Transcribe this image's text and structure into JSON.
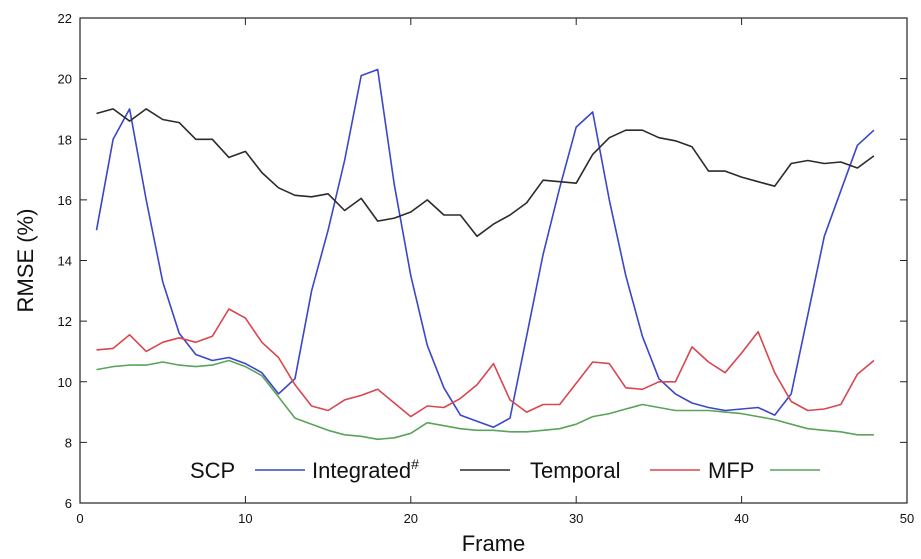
{
  "chart_data": {
    "type": "line",
    "title": "",
    "xlabel": "Frame",
    "ylabel": "RMSE (%)",
    "xlim": [
      0,
      50
    ],
    "ylim": [
      6,
      22
    ],
    "xticks": [
      0,
      10,
      20,
      30,
      40,
      50
    ],
    "yticks": [
      6,
      8,
      10,
      12,
      14,
      16,
      18,
      20,
      22
    ],
    "grid": false,
    "legend_position": "bottom-inside",
    "x": [
      1,
      2,
      3,
      4,
      5,
      6,
      7,
      8,
      9,
      10,
      11,
      12,
      13,
      14,
      15,
      16,
      17,
      18,
      19,
      20,
      21,
      22,
      23,
      24,
      25,
      26,
      27,
      28,
      29,
      30,
      31,
      32,
      33,
      34,
      35,
      36,
      37,
      38,
      39,
      40,
      41,
      42,
      43,
      44,
      45,
      46,
      47,
      48
    ],
    "series": [
      {
        "name": "SCP",
        "color": "#3b46c8",
        "values": [
          15.0,
          18.0,
          19.0,
          16.0,
          13.3,
          11.6,
          10.9,
          10.7,
          10.8,
          10.6,
          10.3,
          9.6,
          10.1,
          13.0,
          15.0,
          17.3,
          20.1,
          20.3,
          16.5,
          13.5,
          11.2,
          9.8,
          8.9,
          8.7,
          8.5,
          8.8,
          11.5,
          14.2,
          16.4,
          18.4,
          18.9,
          16.0,
          13.5,
          11.5,
          10.1,
          9.6,
          9.3,
          9.15,
          9.05,
          9.1,
          9.15,
          8.9,
          9.6,
          12.2,
          14.8,
          16.3,
          17.8,
          18.3
        ]
      },
      {
        "name": "Integrated#",
        "color": "#2b2b2b",
        "values": [
          18.85,
          19.0,
          18.6,
          19.0,
          18.65,
          18.55,
          18.0,
          18.0,
          17.4,
          17.6,
          16.9,
          16.4,
          16.15,
          16.1,
          16.2,
          15.65,
          16.05,
          15.3,
          15.4,
          15.6,
          16.0,
          15.5,
          15.5,
          14.8,
          15.2,
          15.5,
          15.9,
          16.65,
          16.6,
          16.55,
          17.5,
          18.05,
          18.3,
          18.3,
          18.05,
          17.95,
          17.75,
          16.95,
          16.95,
          16.75,
          16.6,
          16.45,
          17.2,
          17.3,
          17.2,
          17.25,
          17.05,
          17.45
        ]
      },
      {
        "name": "Temporal",
        "color": "#d9464f",
        "values": [
          11.05,
          11.1,
          11.55,
          11.0,
          11.3,
          11.45,
          11.3,
          11.5,
          12.4,
          12.1,
          11.3,
          10.8,
          9.9,
          9.2,
          9.05,
          9.4,
          9.55,
          9.75,
          9.3,
          8.85,
          9.2,
          9.15,
          9.45,
          9.9,
          10.6,
          9.4,
          9.0,
          9.25,
          9.25,
          9.95,
          10.65,
          10.6,
          9.8,
          9.75,
          10.0,
          10.0,
          11.15,
          10.65,
          10.3,
          10.95,
          11.65,
          10.3,
          9.35,
          9.05,
          9.1,
          9.25,
          10.25,
          10.7
        ]
      },
      {
        "name": "MFP",
        "color": "#5aa35a",
        "values": [
          10.4,
          10.5,
          10.55,
          10.55,
          10.65,
          10.55,
          10.5,
          10.55,
          10.7,
          10.5,
          10.2,
          9.5,
          8.8,
          8.6,
          8.4,
          8.25,
          8.2,
          8.1,
          8.15,
          8.3,
          8.65,
          8.55,
          8.45,
          8.4,
          8.4,
          8.35,
          8.35,
          8.4,
          8.45,
          8.6,
          8.85,
          8.95,
          9.1,
          9.25,
          9.15,
          9.05,
          9.05,
          9.05,
          9.0,
          8.95,
          8.85,
          8.75,
          8.6,
          8.45,
          8.4,
          8.35,
          8.25,
          8.25
        ]
      }
    ]
  }
}
